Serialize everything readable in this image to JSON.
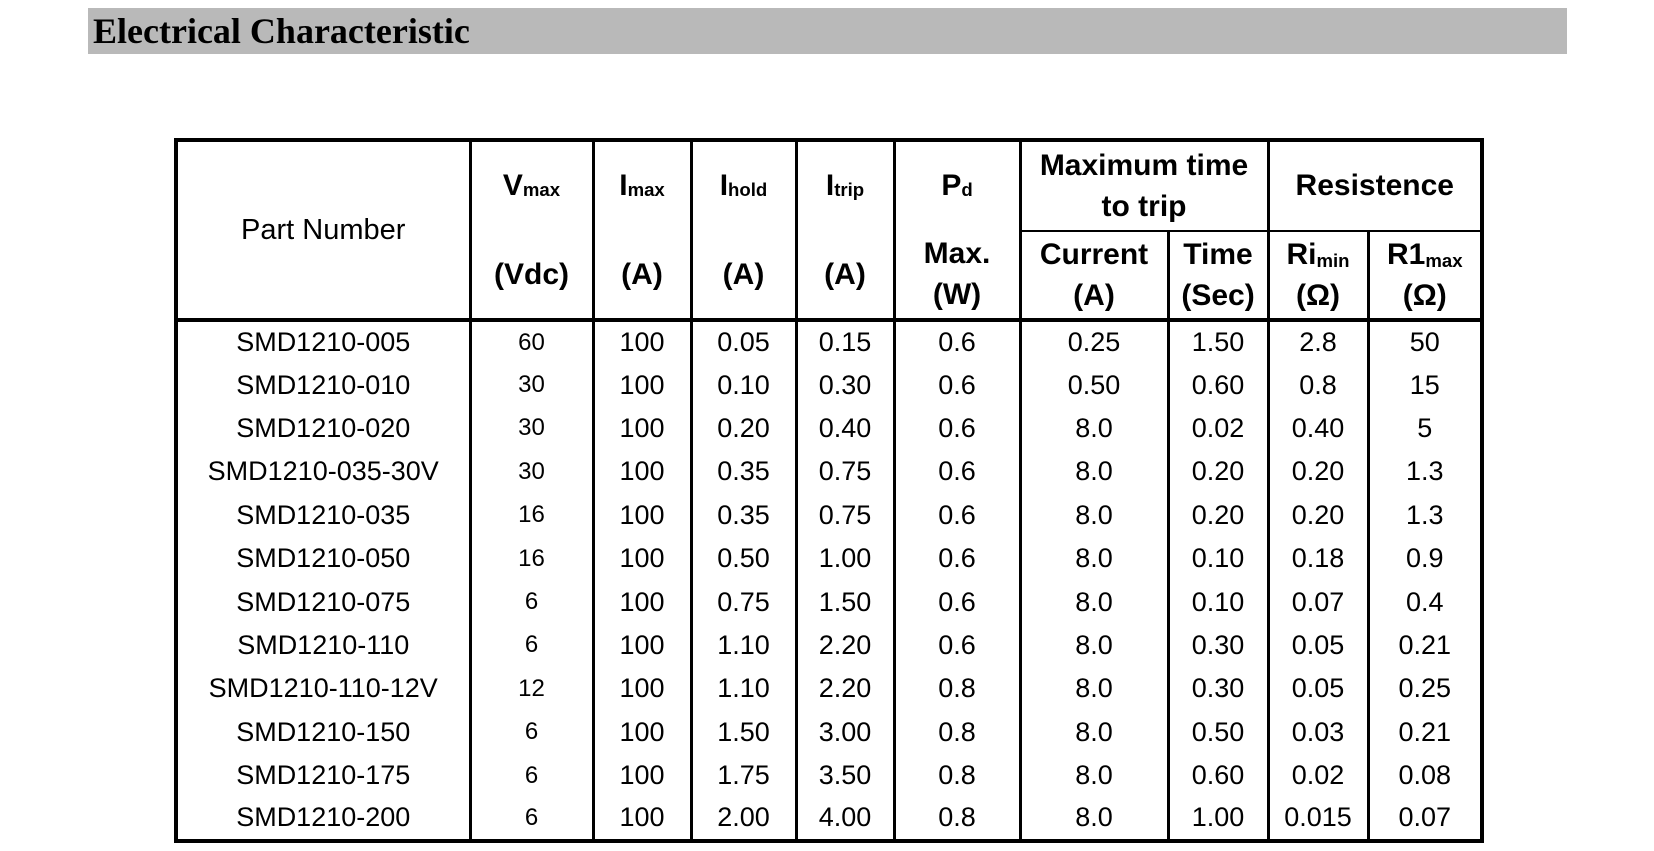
{
  "title_bar": {
    "text": "Electrical Characteristic",
    "bg_color": "#b9b9b9"
  },
  "table": {
    "part_number_header": "Part Number",
    "simple_cols": [
      {
        "base": "V",
        "sub": "max",
        "unit": "(Vdc)"
      },
      {
        "base": "I",
        "sub": "max",
        "unit": "(A)"
      },
      {
        "base": "I",
        "sub": "hold",
        "unit": "(A)"
      },
      {
        "base": "I",
        "sub": "trip",
        "unit": "(A)"
      }
    ],
    "pd_col": {
      "base": "P",
      "sub": "d",
      "line1": "Max.",
      "line2": "(W)"
    },
    "group1": {
      "line1": "Maximum time",
      "line2": "to trip"
    },
    "group2": {
      "label": "Resistence"
    },
    "sub_cols": [
      {
        "label": "Current",
        "unit": "(A)"
      },
      {
        "label": "Time",
        "unit": "(Sec)"
      },
      {
        "base": "Ri",
        "sub": "min",
        "unit": "(Ω)"
      },
      {
        "base": "R1",
        "sub": "max",
        "unit": "(Ω)"
      }
    ],
    "rows": [
      [
        "SMD1210-005",
        "60",
        "100",
        "0.05",
        "0.15",
        "0.6",
        "0.25",
        "1.50",
        "2.8",
        "50"
      ],
      [
        "SMD1210-010",
        "30",
        "100",
        "0.10",
        "0.30",
        "0.6",
        "0.50",
        "0.60",
        "0.8",
        "15"
      ],
      [
        "SMD1210-020",
        "30",
        "100",
        "0.20",
        "0.40",
        "0.6",
        "8.0",
        "0.02",
        "0.40",
        "5"
      ],
      [
        "SMD1210-035-30V",
        "30",
        "100",
        "0.35",
        "0.75",
        "0.6",
        "8.0",
        "0.20",
        "0.20",
        "1.3"
      ],
      [
        "SMD1210-035",
        "16",
        "100",
        "0.35",
        "0.75",
        "0.6",
        "8.0",
        "0.20",
        "0.20",
        "1.3"
      ],
      [
        "SMD1210-050",
        "16",
        "100",
        "0.50",
        "1.00",
        "0.6",
        "8.0",
        "0.10",
        "0.18",
        "0.9"
      ],
      [
        "SMD1210-075",
        "6",
        "100",
        "0.75",
        "1.50",
        "0.6",
        "8.0",
        "0.10",
        "0.07",
        "0.4"
      ],
      [
        "SMD1210-110",
        "6",
        "100",
        "1.10",
        "2.20",
        "0.6",
        "8.0",
        "0.30",
        "0.05",
        "0.21"
      ],
      [
        "SMD1210-110-12V",
        "12",
        "100",
        "1.10",
        "2.20",
        "0.8",
        "8.0",
        "0.30",
        "0.05",
        "0.25"
      ],
      [
        "SMD1210-150",
        "6",
        "100",
        "1.50",
        "3.00",
        "0.8",
        "8.0",
        "0.50",
        "0.03",
        "0.21"
      ],
      [
        "SMD1210-175",
        "6",
        "100",
        "1.75",
        "3.50",
        "0.8",
        "8.0",
        "0.60",
        "0.02",
        "0.08"
      ],
      [
        "SMD1210-200",
        "6",
        "100",
        "2.00",
        "4.00",
        "0.8",
        "8.0",
        "1.00",
        "0.015",
        "0.07"
      ]
    ]
  }
}
